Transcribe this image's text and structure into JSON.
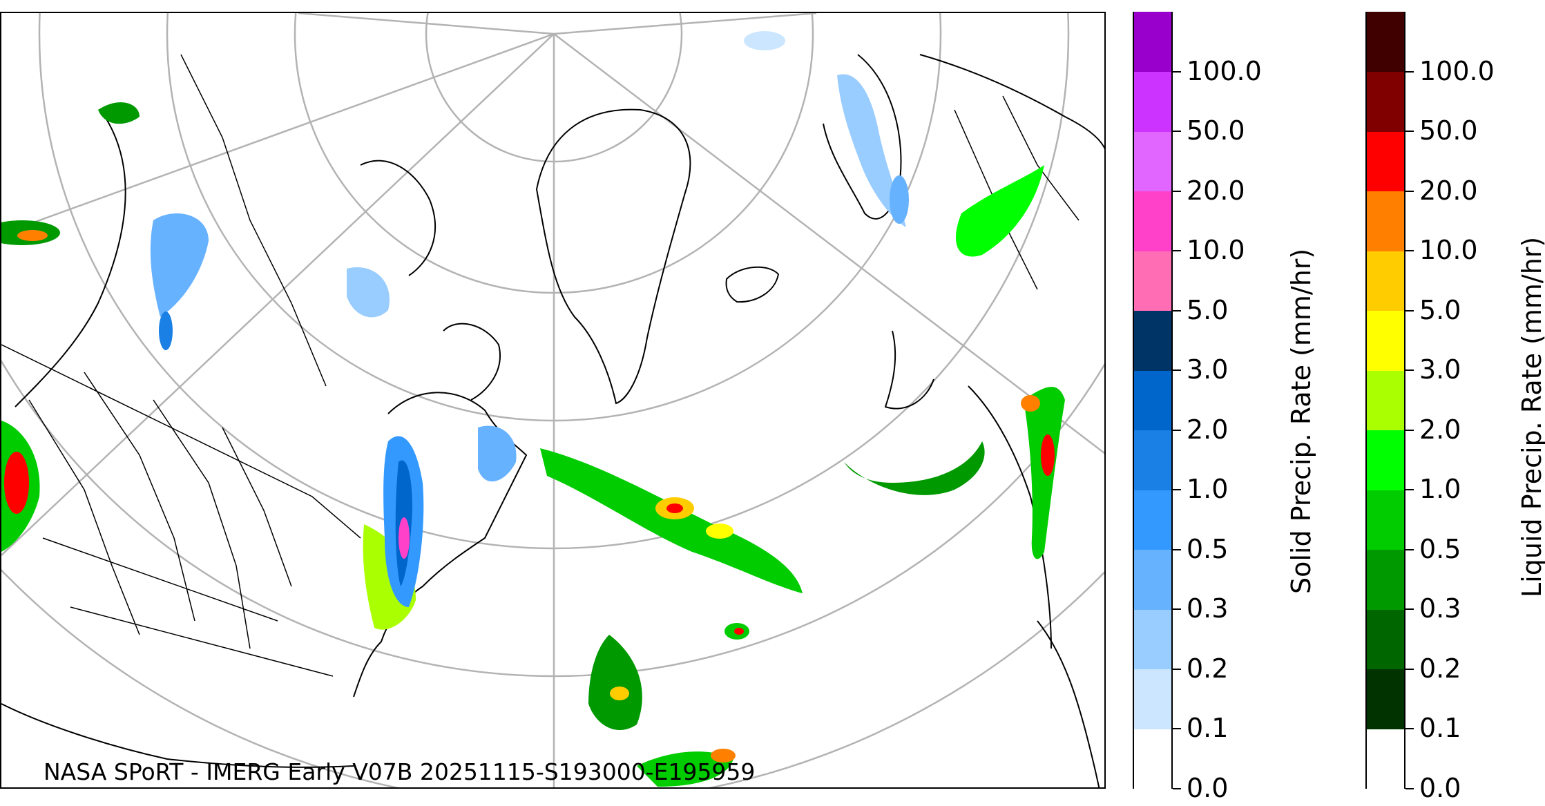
{
  "credit": "NASA SPoRT - IMERG Early V07B 20251115-S193000-E195959",
  "solid_colorbar": {
    "title": "Solid Precip. Rate (mm/hr)",
    "ticks": [
      "0.0",
      "0.1",
      "0.2",
      "0.3",
      "0.5",
      "1.0",
      "2.0",
      "3.0",
      "5.0",
      "10.0",
      "20.0",
      "50.0",
      "100.0"
    ],
    "colors": [
      "#ffffff",
      "#cce6ff",
      "#99ccff",
      "#66b2ff",
      "#3399ff",
      "#1a80e6",
      "#0066cc",
      "#003366",
      "#ff6eb4",
      "#ff40c8",
      "#e066ff",
      "#cc33ff",
      "#9900cc"
    ]
  },
  "liquid_colorbar": {
    "title": "Liquid Precip. Rate (mm/hr)",
    "ticks": [
      "0.0",
      "0.1",
      "0.2",
      "0.3",
      "0.5",
      "1.0",
      "2.0",
      "3.0",
      "5.0",
      "10.0",
      "20.0",
      "50.0",
      "100.0"
    ],
    "colors": [
      "#ffffff",
      "#003300",
      "#006600",
      "#009900",
      "#00cc00",
      "#00ff00",
      "#aaff00",
      "#ffff00",
      "#ffcc00",
      "#ff8000",
      "#ff0000",
      "#800000",
      "#400000"
    ]
  },
  "map": {
    "projection": "polar stereographic (north)",
    "grid_color": "#b3b3b3",
    "coastline_color": "#000000"
  }
}
